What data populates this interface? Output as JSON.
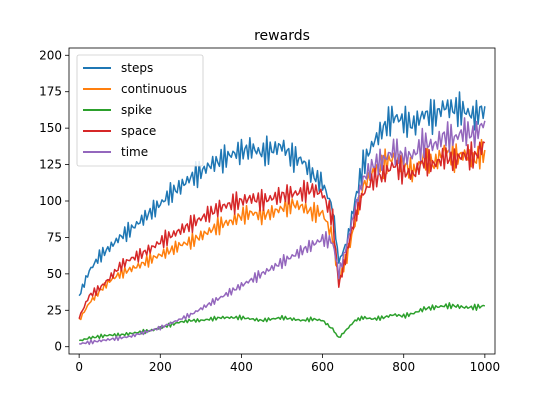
{
  "chart_data": {
    "type": "line",
    "title": "rewards",
    "xlabel": "",
    "ylabel": "",
    "xlim": [
      -25,
      1025
    ],
    "ylim": [
      -5,
      205
    ],
    "xticks": [
      0,
      200,
      400,
      600,
      800,
      1000
    ],
    "yticks": [
      0,
      25,
      50,
      75,
      100,
      125,
      150,
      175,
      200
    ],
    "grid": false,
    "legend_position": "top-left",
    "series": [
      {
        "name": "steps",
        "color": "#1f77b4",
        "x": [
          0,
          25,
          50,
          75,
          100,
          125,
          150,
          175,
          200,
          225,
          250,
          275,
          300,
          325,
          350,
          375,
          400,
          425,
          450,
          475,
          500,
          525,
          550,
          575,
          600,
          625,
          640,
          660,
          680,
          700,
          725,
          750,
          775,
          800,
          825,
          850,
          875,
          900,
          925,
          950,
          975,
          1000
        ],
        "y": [
          35,
          52,
          62,
          68,
          75,
          80,
          86,
          92,
          98,
          105,
          110,
          116,
          120,
          125,
          128,
          132,
          134,
          136,
          133,
          135,
          138,
          130,
          128,
          118,
          112,
          95,
          58,
          72,
          100,
          125,
          140,
          150,
          158,
          155,
          152,
          160,
          158,
          165,
          163,
          162,
          158,
          165
        ]
      },
      {
        "name": "continuous",
        "color": "#ff7f0e",
        "x": [
          0,
          25,
          50,
          75,
          100,
          125,
          150,
          175,
          200,
          225,
          250,
          275,
          300,
          325,
          350,
          375,
          400,
          425,
          450,
          475,
          500,
          525,
          550,
          575,
          600,
          625,
          640,
          660,
          680,
          700,
          725,
          750,
          775,
          800,
          825,
          850,
          875,
          900,
          925,
          950,
          975,
          1000
        ],
        "y": [
          18,
          30,
          38,
          45,
          50,
          53,
          56,
          60,
          63,
          66,
          70,
          72,
          76,
          80,
          84,
          86,
          90,
          92,
          90,
          92,
          95,
          98,
          96,
          92,
          92,
          75,
          45,
          62,
          85,
          110,
          120,
          125,
          130,
          125,
          120,
          130,
          125,
          135,
          130,
          132,
          128,
          135
        ]
      },
      {
        "name": "spike",
        "color": "#2ca02c",
        "x": [
          0,
          25,
          50,
          75,
          100,
          125,
          150,
          175,
          200,
          225,
          250,
          275,
          300,
          325,
          350,
          375,
          400,
          425,
          450,
          475,
          500,
          525,
          550,
          575,
          600,
          625,
          640,
          660,
          680,
          700,
          725,
          750,
          775,
          800,
          825,
          850,
          875,
          900,
          925,
          950,
          975,
          1000
        ],
        "y": [
          4,
          6,
          7,
          8,
          8,
          9,
          10,
          11,
          13,
          15,
          17,
          18,
          18,
          19,
          20,
          20,
          20,
          19,
          18,
          19,
          20,
          19,
          18,
          19,
          18,
          12,
          6,
          12,
          18,
          20,
          19,
          20,
          22,
          21,
          23,
          26,
          27,
          28,
          28,
          27,
          27,
          28
        ]
      },
      {
        "name": "space",
        "color": "#d62728",
        "x": [
          0,
          25,
          50,
          75,
          100,
          125,
          150,
          175,
          200,
          225,
          250,
          275,
          300,
          325,
          350,
          375,
          400,
          425,
          450,
          475,
          500,
          525,
          550,
          575,
          600,
          625,
          640,
          660,
          680,
          700,
          725,
          750,
          775,
          800,
          825,
          850,
          875,
          900,
          925,
          950,
          975,
          1000
        ],
        "y": [
          20,
          35,
          40,
          47,
          55,
          60,
          63,
          67,
          72,
          76,
          80,
          84,
          88,
          92,
          96,
          98,
          100,
          102,
          100,
          102,
          104,
          105,
          106,
          108,
          105,
          88,
          42,
          65,
          90,
          105,
          115,
          118,
          125,
          120,
          118,
          128,
          125,
          130,
          128,
          132,
          130,
          140
        ]
      },
      {
        "name": "time",
        "color": "#9467bd",
        "x": [
          0,
          25,
          50,
          75,
          100,
          125,
          150,
          175,
          200,
          225,
          250,
          275,
          300,
          325,
          350,
          375,
          400,
          425,
          450,
          475,
          500,
          525,
          550,
          575,
          600,
          625,
          640,
          660,
          680,
          700,
          725,
          750,
          775,
          800,
          825,
          850,
          875,
          900,
          925,
          950,
          975,
          1000
        ],
        "y": [
          2,
          3,
          4,
          5,
          6,
          7,
          9,
          11,
          13,
          16,
          19,
          22,
          26,
          30,
          34,
          38,
          42,
          46,
          50,
          54,
          58,
          62,
          66,
          70,
          74,
          72,
          50,
          70,
          95,
          115,
          125,
          128,
          135,
          130,
          132,
          140,
          138,
          145,
          143,
          148,
          145,
          155
        ]
      }
    ]
  }
}
